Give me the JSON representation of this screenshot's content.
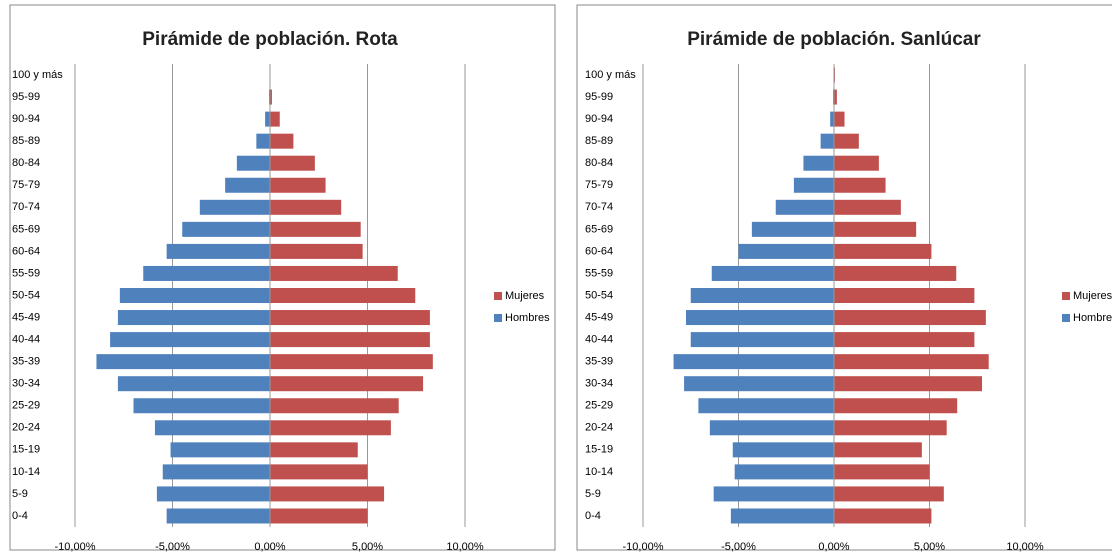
{
  "chart_data": [
    {
      "type": "bar",
      "orientation": "horizontal",
      "title": "Pirámide de población. Rota",
      "categories": [
        "0-4",
        "5-9",
        "10-14",
        "15-19",
        "20-24",
        "25-29",
        "30-34",
        "35-39",
        "40-44",
        "45-49",
        "50-54",
        "55-59",
        "60-64",
        "65-69",
        "70-74",
        "75-79",
        "80-84",
        "85-89",
        "90-94",
        "95-99",
        "100 y más"
      ],
      "series": [
        {
          "name": "Mujeres",
          "color": "#c0504d",
          "values": [
            5.0,
            5.85,
            5.0,
            4.5,
            6.2,
            6.6,
            7.85,
            8.35,
            8.2,
            8.2,
            7.45,
            6.55,
            4.75,
            4.65,
            3.65,
            2.85,
            2.3,
            1.2,
            0.5,
            0.1,
            0.02
          ]
        },
        {
          "name": "Hombres",
          "color": "#4f81bd",
          "values": [
            -5.3,
            -5.8,
            -5.5,
            -5.1,
            -5.9,
            -7.0,
            -7.8,
            -8.9,
            -8.2,
            -7.8,
            -7.7,
            -6.5,
            -5.3,
            -4.5,
            -3.6,
            -2.3,
            -1.7,
            -0.7,
            -0.25,
            -0.05,
            -0.01
          ]
        }
      ],
      "xlim": [
        -10,
        10
      ],
      "xticks": [
        {
          "value": -10,
          "label": "-10,00%"
        },
        {
          "value": -5,
          "label": "-5,00%"
        },
        {
          "value": 0,
          "label": "0,00%"
        },
        {
          "value": 5,
          "label": "5,00%"
        },
        {
          "value": 10,
          "label": "10,00%"
        }
      ],
      "grid": true,
      "legend": "right"
    },
    {
      "type": "bar",
      "orientation": "horizontal",
      "title": "Pirámide de población. Sanlúcar",
      "categories": [
        "0-4",
        "5-9",
        "10-14",
        "15-19",
        "20-24",
        "25-29",
        "30-34",
        "35-39",
        "40-44",
        "45-49",
        "50-54",
        "55-59",
        "60-64",
        "65-69",
        "70-74",
        "75-79",
        "80-84",
        "85-89",
        "90-94",
        "95-99",
        "100 y más"
      ],
      "series": [
        {
          "name": "Mujeres",
          "color": "#c0504d",
          "values": [
            5.1,
            5.75,
            5.0,
            4.6,
            5.9,
            6.45,
            7.75,
            8.1,
            7.35,
            7.95,
            7.35,
            6.4,
            5.1,
            4.3,
            3.5,
            2.7,
            2.35,
            1.3,
            0.55,
            0.15,
            0.05
          ]
        },
        {
          "name": "Hombres",
          "color": "#4f81bd",
          "values": [
            -5.4,
            -6.3,
            -5.2,
            -5.3,
            -6.5,
            -7.1,
            -7.85,
            -8.4,
            -7.5,
            -7.75,
            -7.5,
            -6.4,
            -5.0,
            -4.3,
            -3.05,
            -2.1,
            -1.6,
            -0.7,
            -0.2,
            -0.05,
            -0.01
          ]
        }
      ],
      "xlim": [
        -10,
        10
      ],
      "xticks": [
        {
          "value": -10,
          "label": "-10,00%"
        },
        {
          "value": -5,
          "label": "-5,00%"
        },
        {
          "value": 0,
          "label": "0,00%"
        },
        {
          "value": 5,
          "label": "5,00%"
        },
        {
          "value": 10,
          "label": "10,00%"
        }
      ],
      "grid": true,
      "legend": "right"
    }
  ]
}
